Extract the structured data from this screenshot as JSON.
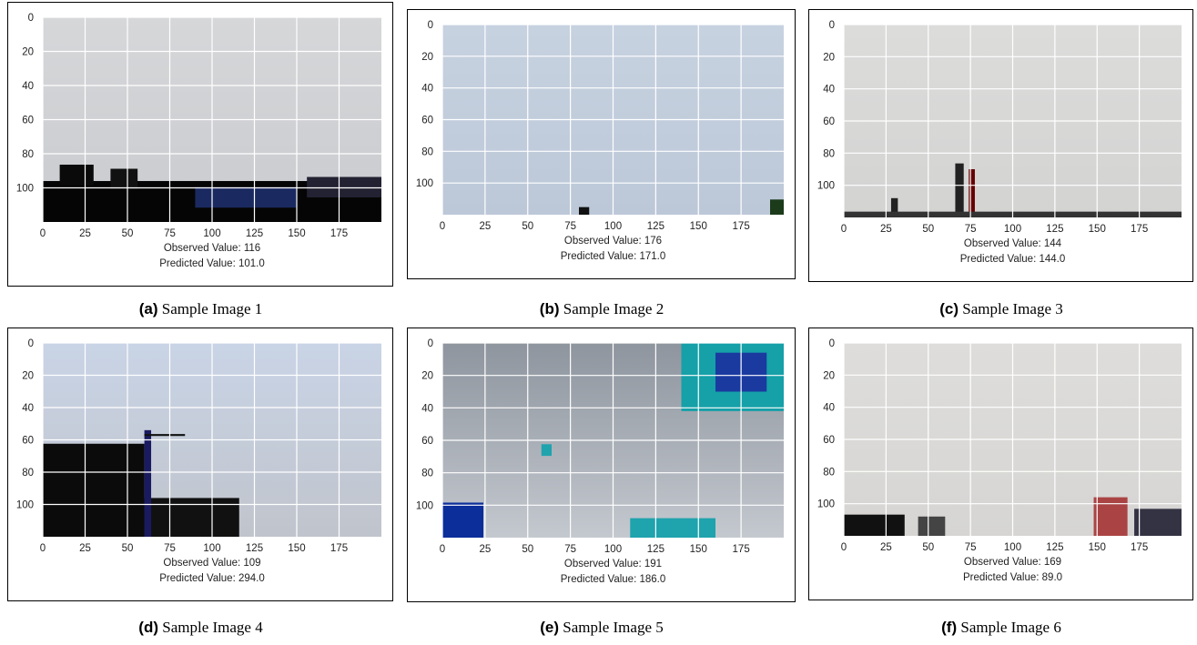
{
  "axes": {
    "xticks": [
      0,
      25,
      50,
      75,
      100,
      125,
      150,
      175
    ],
    "yticks": [
      0,
      20,
      40,
      60,
      80,
      100
    ]
  },
  "panels": [
    {
      "label": "(a)",
      "caption": "Sample Image 1",
      "observed": "Observed Value:  116",
      "predicted": "Predicted Value: 101.0"
    },
    {
      "label": "(b)",
      "caption": "Sample Image 2",
      "observed": "Observed Value:  176",
      "predicted": "Predicted Value: 171.0"
    },
    {
      "label": "(c)",
      "caption": "Sample Image 3",
      "observed": "Observed Value:  144",
      "predicted": "Predicted Value: 144.0"
    },
    {
      "label": "(d)",
      "caption": "Sample Image 4",
      "observed": "Observed Value:  109",
      "predicted": "Predicted Value: 294.0"
    },
    {
      "label": "(e)",
      "caption": "Sample Image 5",
      "observed": "Observed Value:  191",
      "predicted": "Predicted Value: 186.0"
    },
    {
      "label": "(f)",
      "caption": "Sample Image 6",
      "observed": "Observed Value:  169",
      "predicted": "Predicted Value: 89.0"
    }
  ]
}
